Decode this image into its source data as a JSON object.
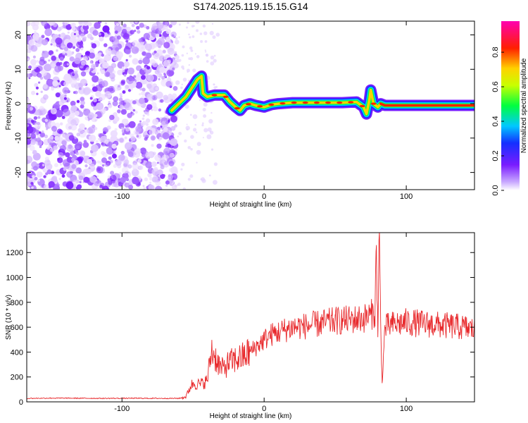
{
  "chart_data": [
    {
      "type": "heatmap",
      "title": "S174.2025.119.15.15.G14",
      "xlabel": "Height of straight line (km)",
      "ylabel": "Frequency (Hz)",
      "xlim": [
        -167,
        148
      ],
      "ylim": [
        -25,
        24
      ],
      "xticks": [
        "-100",
        "0",
        "100"
      ],
      "yticks": [
        "-20",
        "-10",
        "0",
        "10",
        "20"
      ],
      "colorbar_label": "Normalized spectral amplitude",
      "colorbar_ticks": [
        "0.0",
        "0.2",
        "0.4",
        "0.6",
        "0.8"
      ],
      "colorbar_range": [
        0,
        0.98
      ],
      "noise_region_x": [
        -167,
        -62
      ],
      "ridge": {
        "x": [
          -65,
          -55,
          -47,
          -44,
          -43,
          -40,
          -35,
          -28,
          -24,
          -20,
          -17,
          -14,
          -10,
          -6,
          0,
          5,
          10,
          20,
          40,
          55,
          65,
          70,
          72,
          74,
          75,
          77,
          80,
          82,
          85,
          100,
          120,
          148
        ],
        "y": [
          -2,
          2,
          7,
          8,
          3,
          2,
          2.5,
          2.5,
          0.5,
          -1,
          -2,
          -0.5,
          0,
          -0.5,
          -1,
          -0.3,
          0,
          0.3,
          0.3,
          0.3,
          0.5,
          -1,
          -3,
          1,
          4,
          0,
          -1,
          0,
          -0.5,
          -0.5,
          -0.5,
          -0.5
        ]
      }
    },
    {
      "type": "line",
      "xlabel": "Height of straight line (km)",
      "ylabel": "SNR (10 * v/v)",
      "xlim": [
        -167,
        148
      ],
      "ylim": [
        0,
        1360
      ],
      "xticks": [
        "-100",
        "0",
        "100"
      ],
      "yticks": [
        "0",
        "200",
        "400",
        "600",
        "800",
        "1000",
        "1200"
      ],
      "series": [
        {
          "color": "#e8282b",
          "x": [
            -167,
            -150,
            -130,
            -110,
            -90,
            -70,
            -60,
            -55,
            -52,
            -50,
            -45,
            -40,
            -37,
            -30,
            -25,
            -20,
            -15,
            -10,
            -5,
            0,
            5,
            10,
            20,
            30,
            40,
            50,
            60,
            70,
            75,
            78,
            79,
            80,
            81,
            82,
            83,
            85,
            90,
            100,
            110,
            120,
            130,
            140,
            148
          ],
          "y": [
            28,
            30,
            29,
            28,
            29,
            28,
            28,
            40,
            120,
            150,
            140,
            170,
            420,
            260,
            310,
            340,
            360,
            400,
            450,
            500,
            540,
            560,
            600,
            610,
            630,
            650,
            660,
            670,
            700,
            720,
            1260,
            520,
            1340,
            650,
            150,
            600,
            620,
            640,
            630,
            620,
            610,
            600,
            580
          ]
        }
      ]
    }
  ]
}
